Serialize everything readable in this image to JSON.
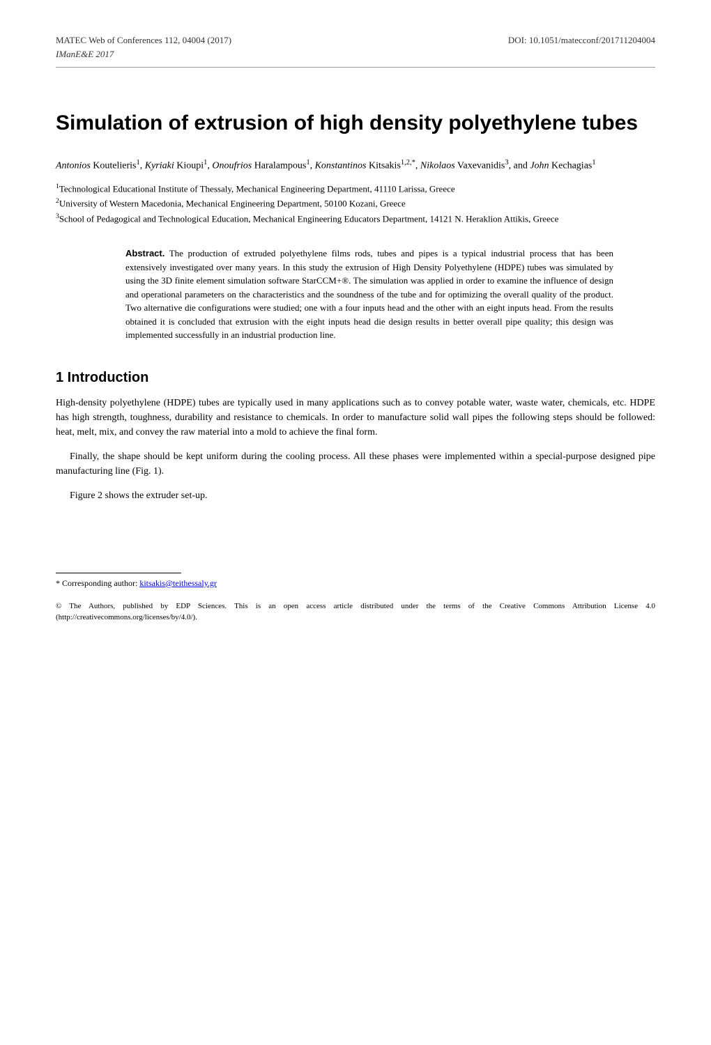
{
  "header": {
    "left": "MATEC Web of Conferences 112, 04004 (2017)",
    "right": "DOI: 10.1051/matecconf/201711204004",
    "conference": "IManE&E 2017"
  },
  "title": "Simulation of extrusion of high density polyethylene tubes",
  "authors": [
    {
      "first": "Antonios",
      "last": "Koutelieris",
      "sup": "1"
    },
    {
      "first": "Kyriaki",
      "last": "Kioupi",
      "sup": "1"
    },
    {
      "first": "Onoufrios",
      "last": "Haralampous",
      "sup": "1"
    },
    {
      "first": "Konstantinos",
      "last": "Kitsakis",
      "sup": "1,2,*"
    },
    {
      "first": "Nikolaos",
      "last": "Vaxevanidis",
      "sup": "3"
    },
    {
      "first": "John",
      "last": "Kechagias",
      "sup": "1"
    }
  ],
  "authors_joiner_last": ", and ",
  "affiliations": [
    {
      "sup": "1",
      "text": "Technological Educational Institute of Thessaly, Mechanical Engineering Department, 41110 Larissa, Greece"
    },
    {
      "sup": "2",
      "text": "University of Western Macedonia, Mechanical Engineering Department, 50100 Kozani, Greece"
    },
    {
      "sup": "3",
      "text": "School of Pedagogical and Technological Education, Mechanical Engineering Educators Department, 14121 N. Heraklion Attikis, Greece"
    }
  ],
  "abstract": {
    "label": "Abstract.",
    "text": "The production of extruded polyethylene films rods, tubes and pipes is a typical industrial process that has been extensively investigated over many years. In this study the extrusion of High Density Polyethylene (HDPE) tubes was simulated by using the 3D finite element simulation software StarCCM+®. The simulation was applied in order to examine the influence of design and operational parameters on the characteristics and the soundness of the tube and for optimizing the overall quality of the product. Two alternative die configurations were studied; one with a four inputs head and the other with an eight inputs head. From the results obtained it is concluded that extrusion with the eight inputs head die design results in better overall pipe quality; this design was implemented successfully in an industrial production line."
  },
  "section": {
    "heading": "1 Introduction",
    "paragraphs": [
      "High-density polyethylene (HDPE) tubes are typically used in many applications such as to convey potable water, waste water, chemicals, etc. HDPE has high strength, toughness, durability and resistance to chemicals. In order to manufacture solid wall pipes the following steps should be followed: heat, melt, mix, and convey the raw material into a mold to achieve the final form.",
      "Finally, the shape should be kept uniform during the cooling process. All these phases were implemented within a special-purpose designed pipe manufacturing line (Fig. 1).",
      "Figure 2 shows the extruder set-up."
    ]
  },
  "footnote": {
    "label": "* Corresponding author: ",
    "email": "kitsakis@teithessaly.gr"
  },
  "copyright": "© The Authors, published by EDP Sciences. This is an open access article distributed under the terms of the Creative Commons Attribution License 4.0 (http://creativecommons.org/licenses/by/4.0/)."
}
